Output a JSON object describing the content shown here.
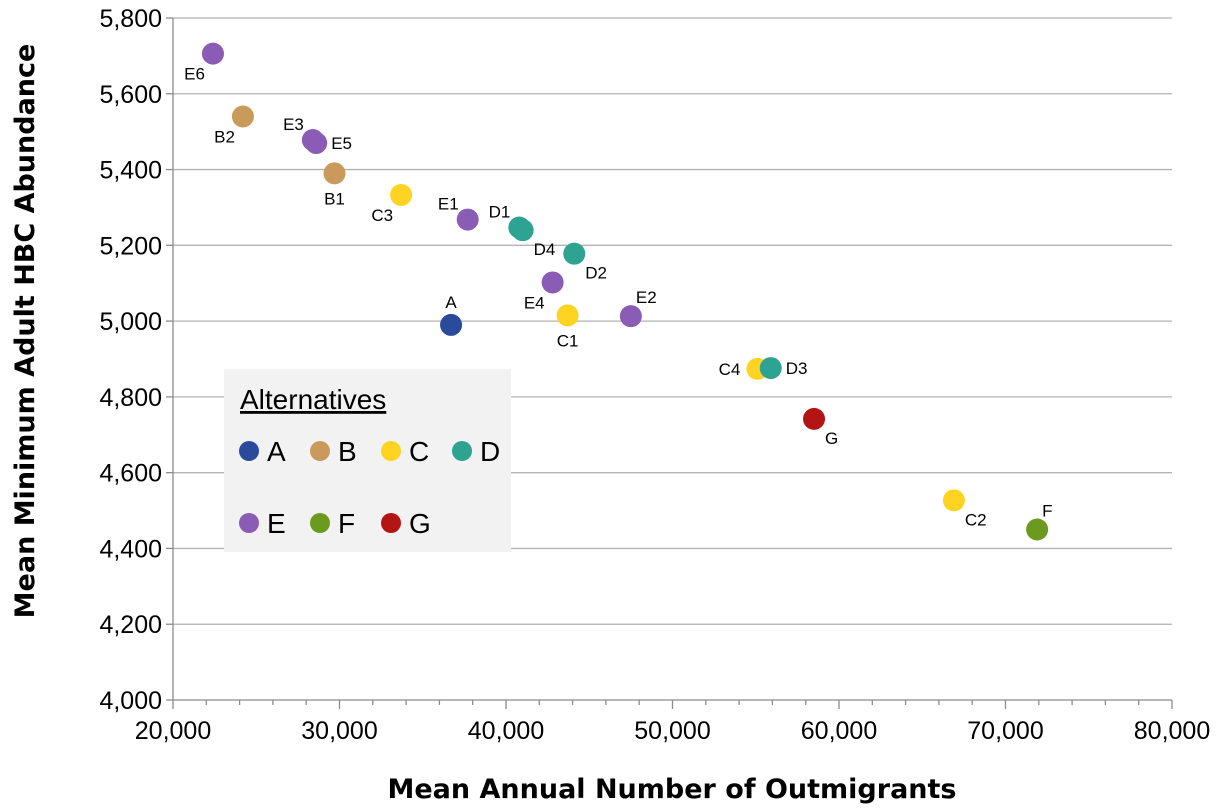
{
  "chart_data": {
    "type": "scatter",
    "title": "",
    "xlabel": "Mean Annual Number of Outmigrants",
    "ylabel": "Mean Minimum Adult HBC Abundance",
    "xlim": [
      20000,
      80000
    ],
    "ylim": [
      4000,
      5800
    ],
    "x_ticks": [
      20000,
      30000,
      40000,
      50000,
      60000,
      70000,
      80000
    ],
    "x_tick_labels": [
      "20,000",
      "30,000",
      "40,000",
      "50,000",
      "60,000",
      "70,000",
      "80,000"
    ],
    "y_ticks": [
      4000,
      4200,
      4400,
      4600,
      4800,
      5000,
      5200,
      5400,
      5600,
      5800
    ],
    "y_tick_labels": [
      "4,000",
      "4,200",
      "4,400",
      "4,600",
      "4,800",
      "5,000",
      "5,200",
      "5,400",
      "5,600",
      "5,800"
    ],
    "grid": "horizontal",
    "legend": {
      "title": "Alternatives",
      "placement": "center-left",
      "entries": [
        {
          "group": "A",
          "label": "A"
        },
        {
          "group": "B",
          "label": "B"
        },
        {
          "group": "C",
          "label": "C"
        },
        {
          "group": "D",
          "label": "D"
        },
        {
          "group": "E",
          "label": "E"
        },
        {
          "group": "F",
          "label": "F"
        },
        {
          "group": "G",
          "label": "G"
        }
      ]
    },
    "colors": {
      "A": "#2a4b9b",
      "B": "#c99a5b",
      "C": "#ffd321",
      "D": "#2ea391",
      "E": "#8a5cb5",
      "F": "#6b9a1f",
      "G": "#b31414"
    },
    "points": [
      {
        "label": "A",
        "group": "A",
        "x": 36700,
        "y": 4990,
        "label_pos": "above"
      },
      {
        "label": "B1",
        "group": "B",
        "x": 29700,
        "y": 5390,
        "label_pos": "below"
      },
      {
        "label": "B2",
        "group": "B",
        "x": 24200,
        "y": 5540,
        "label_pos": "below-left"
      },
      {
        "label": "C1",
        "group": "C",
        "x": 43700,
        "y": 5015,
        "label_pos": "below"
      },
      {
        "label": "C2",
        "group": "C",
        "x": 66900,
        "y": 4527,
        "label_pos": "below-right"
      },
      {
        "label": "C3",
        "group": "C",
        "x": 33700,
        "y": 5333,
        "label_pos": "below-left"
      },
      {
        "label": "C4",
        "group": "C",
        "x": 55100,
        "y": 4874,
        "label_pos": "left"
      },
      {
        "label": "D1",
        "group": "D",
        "x": 40800,
        "y": 5247,
        "label_pos": "above-left"
      },
      {
        "label": "D2",
        "group": "D",
        "x": 44100,
        "y": 5178,
        "label_pos": "below-right"
      },
      {
        "label": "D3",
        "group": "D",
        "x": 55900,
        "y": 4876,
        "label_pos": "right"
      },
      {
        "label": "D4",
        "group": "D",
        "x": 41000,
        "y": 5240,
        "label_pos": "below-right"
      },
      {
        "label": "E1",
        "group": "E",
        "x": 37700,
        "y": 5268,
        "label_pos": "above-left"
      },
      {
        "label": "E2",
        "group": "E",
        "x": 47500,
        "y": 5013,
        "label_pos": "above-right"
      },
      {
        "label": "E3",
        "group": "E",
        "x": 28400,
        "y": 5478,
        "label_pos": "above-left"
      },
      {
        "label": "E4",
        "group": "E",
        "x": 42800,
        "y": 5102,
        "label_pos": "below-left"
      },
      {
        "label": "E5",
        "group": "E",
        "x": 28600,
        "y": 5470,
        "label_pos": "right"
      },
      {
        "label": "E6",
        "group": "E",
        "x": 22400,
        "y": 5706,
        "label_pos": "below-left"
      },
      {
        "label": "F",
        "group": "F",
        "x": 71900,
        "y": 4450,
        "label_pos": "above-right"
      },
      {
        "label": "G",
        "group": "G",
        "x": 58500,
        "y": 4742,
        "label_pos": "below-right"
      }
    ]
  }
}
